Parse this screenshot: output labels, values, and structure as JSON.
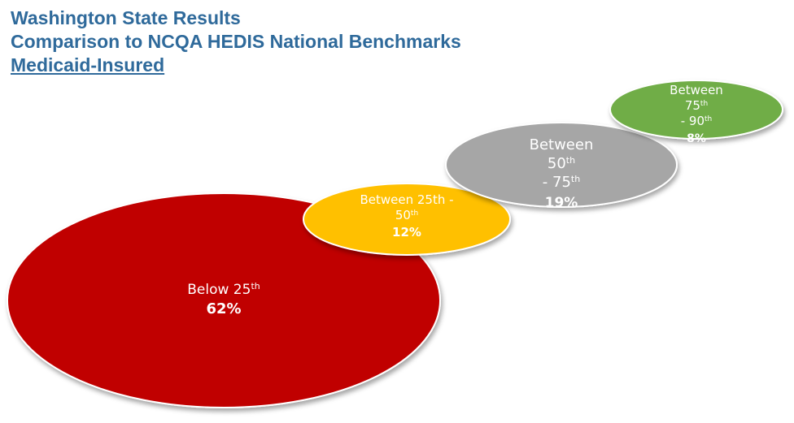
{
  "titles": {
    "line1": "Washington State Results",
    "line2": "Comparison to NCQA HEDIS National Benchmarks",
    "line3": "Medicaid-Insured"
  },
  "chart_data": {
    "type": "bubble",
    "title": "Washington State Results Comparison to NCQA HEDIS National Benchmarks Medicaid-Insured",
    "series": [
      {
        "name": "Below 25th",
        "label_lines": [
          [
            "Below 25",
            "th"
          ]
        ],
        "value": 62,
        "value_label": "62%",
        "color": "#c00000"
      },
      {
        "name": "Between 25th - 50th",
        "label_lines": [
          [
            "Between 25th -",
            ""
          ],
          [
            "50",
            "th"
          ]
        ],
        "value": 12,
        "value_label": "12%",
        "color": "#ffc000"
      },
      {
        "name": "Between 50th - 75th",
        "label_lines": [
          [
            "Between",
            ""
          ],
          [
            "50",
            "th"
          ],
          [
            " - 75",
            "th"
          ]
        ],
        "value": 19,
        "value_label": "19%",
        "color": "#a6a6a6"
      },
      {
        "name": "Between 75th - 90th",
        "label_lines": [
          [
            "Between",
            ""
          ],
          [
            "75",
            "th"
          ],
          [
            " - 90",
            "th"
          ]
        ],
        "value": 8,
        "value_label": "8%",
        "color": "#70ad47"
      }
    ]
  }
}
